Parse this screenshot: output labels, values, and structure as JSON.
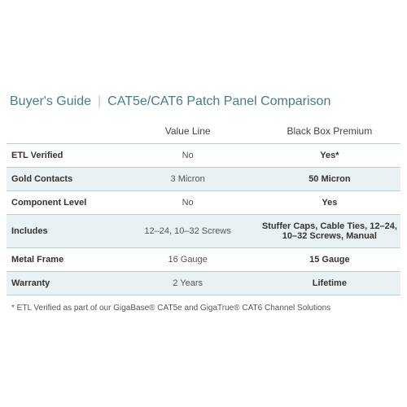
{
  "title": {
    "main": "Buyer's Guide",
    "sub": "CAT5e/CAT6 Patch Panel Comparison"
  },
  "columns": [
    "Value Line",
    "Black Box Premium"
  ],
  "rows": [
    {
      "label": "ETL Verified",
      "value": "No",
      "premium": "Yes*"
    },
    {
      "label": "Gold Contacts",
      "value": "3 Micron",
      "premium": "50 Micron"
    },
    {
      "label": "Component Level",
      "value": "No",
      "premium": "Yes"
    },
    {
      "label": "Includes",
      "value": "12–24, 10–32 Screws",
      "premium": "Stuffer Caps, Cable Ties, 12–24, 10–32 Screws, Manual"
    },
    {
      "label": "Metal Frame",
      "value": "16 Gauge",
      "premium": "15 Gauge"
    },
    {
      "label": "Warranty",
      "value": "2 Years",
      "premium": "Lifetime"
    }
  ],
  "footnote": "* ETL Verified as part of our GigaBase® CAT5e and GigaTrue® CAT6 Channel Solutions",
  "colors": {
    "accent": "#4a7a8f",
    "alt_row_bg": "#eaf1f4",
    "border": "#b8cdd6",
    "text": "#555555",
    "text_bold": "#333333"
  }
}
